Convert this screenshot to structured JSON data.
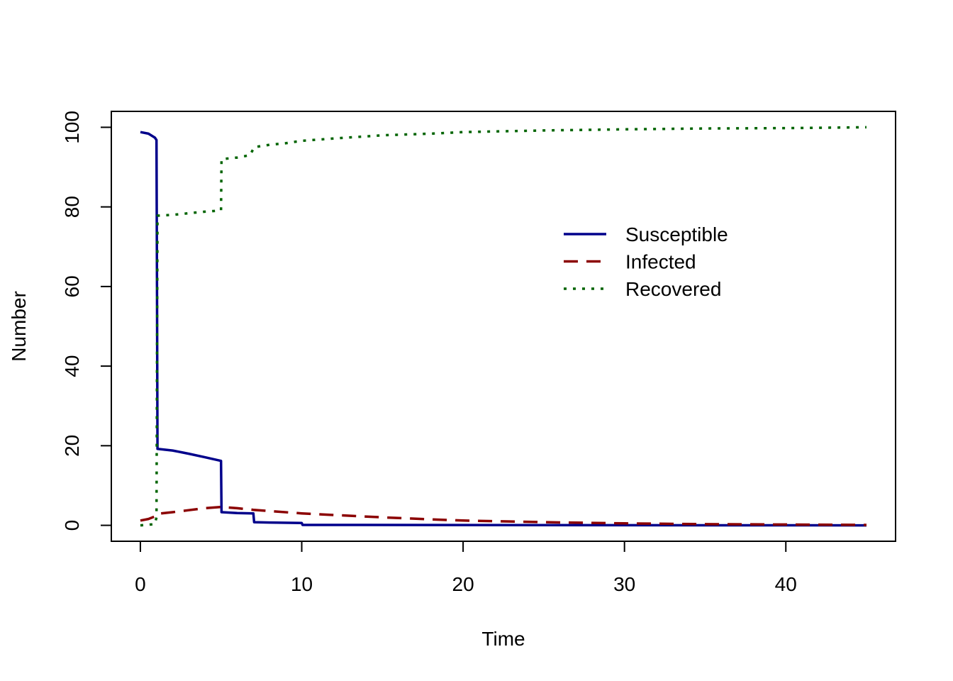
{
  "chart_data": {
    "type": "line",
    "title": "",
    "xlabel": "Time",
    "ylabel": "Number",
    "xlim": [
      -1.8,
      46.8
    ],
    "ylim": [
      -4,
      104
    ],
    "xticks": [
      0,
      10,
      20,
      30,
      40
    ],
    "yticks": [
      0,
      20,
      40,
      60,
      80,
      100
    ],
    "grid": false,
    "legend_position": "right-upper",
    "series": [
      {
        "name": "Susceptible",
        "color": "#00008B",
        "dash": "solid",
        "points": [
          [
            0,
            98.8
          ],
          [
            0.5,
            98.4
          ],
          [
            0.9,
            97.4
          ],
          [
            1.0,
            96.8
          ],
          [
            1.03,
            60
          ],
          [
            1.06,
            19.2
          ],
          [
            2,
            18.8
          ],
          [
            3,
            18.0
          ],
          [
            4,
            17.1
          ],
          [
            5,
            16.2
          ],
          [
            5.03,
            3.3
          ],
          [
            6,
            3.1
          ],
          [
            7,
            3.0
          ],
          [
            7.05,
            0.8
          ],
          [
            8,
            0.7
          ],
          [
            10,
            0.6
          ],
          [
            10.05,
            0.1
          ],
          [
            45,
            0.0
          ]
        ]
      },
      {
        "name": "Infected",
        "color": "#8B0000",
        "dash": "dashed",
        "points": [
          [
            0,
            1.2
          ],
          [
            0.5,
            1.6
          ],
          [
            1.0,
            2.4
          ],
          [
            1.06,
            2.9
          ],
          [
            2,
            3.3
          ],
          [
            3,
            3.8
          ],
          [
            4,
            4.3
          ],
          [
            5,
            4.6
          ],
          [
            6,
            4.3
          ],
          [
            7,
            3.9
          ],
          [
            8,
            3.6
          ],
          [
            10,
            3.0
          ],
          [
            12,
            2.6
          ],
          [
            15,
            2.0
          ],
          [
            18,
            1.5
          ],
          [
            20,
            1.2
          ],
          [
            25,
            0.8
          ],
          [
            30,
            0.5
          ],
          [
            35,
            0.3
          ],
          [
            40,
            0.2
          ],
          [
            45,
            0.1
          ]
        ]
      },
      {
        "name": "Recovered",
        "color": "#006400",
        "dash": "dotted",
        "points": [
          [
            0,
            0
          ],
          [
            0.9,
            0.3
          ],
          [
            1.0,
            2.0
          ],
          [
            1.06,
            77.8
          ],
          [
            2,
            78.0
          ],
          [
            3,
            78.4
          ],
          [
            4,
            78.8
          ],
          [
            5,
            79.1
          ],
          [
            5.03,
            92.0
          ],
          [
            6,
            92.4
          ],
          [
            6.8,
            93.0
          ],
          [
            7.05,
            95.0
          ],
          [
            8,
            95.6
          ],
          [
            9,
            96.0
          ],
          [
            10,
            96.6
          ],
          [
            12,
            97.2
          ],
          [
            15,
            98.0
          ],
          [
            18,
            98.4
          ],
          [
            20,
            98.8
          ],
          [
            25,
            99.2
          ],
          [
            30,
            99.5
          ],
          [
            35,
            99.7
          ],
          [
            40,
            99.8
          ],
          [
            45,
            100.0
          ]
        ]
      }
    ]
  }
}
